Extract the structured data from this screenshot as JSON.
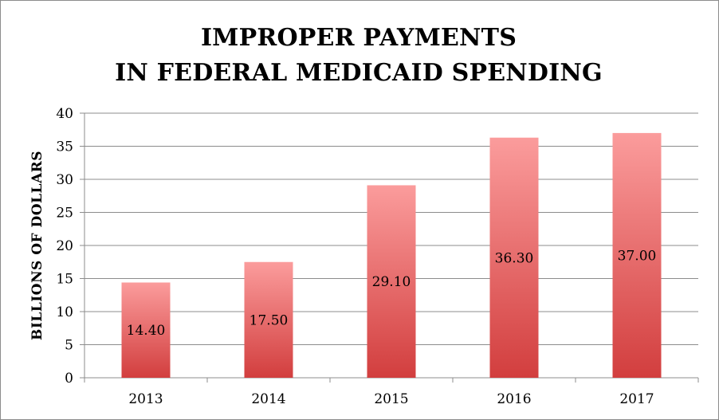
{
  "chart_data": {
    "type": "bar",
    "title_lines": [
      "IMPROPER PAYMENTS",
      "IN FEDERAL MEDICAID SPENDING"
    ],
    "xlabel": "",
    "ylabel": "BILLIONS OF DOLLARS",
    "categories": [
      "2013",
      "2014",
      "2015",
      "2016",
      "2017"
    ],
    "values": [
      14.4,
      17.5,
      29.1,
      36.3,
      37.0
    ],
    "data_labels": [
      "14.40",
      "17.50",
      "29.10",
      "36.30",
      "37.00"
    ],
    "yticks": [
      "0",
      "5",
      "10",
      "15",
      "20",
      "25",
      "30",
      "35",
      "40"
    ],
    "ylim": [
      0,
      40
    ],
    "grid": true,
    "legend": "none",
    "colors": {
      "bar_top": "#fb9c9c",
      "bar_bottom": "#d23e3e",
      "grid": "#8c8c8c"
    }
  }
}
